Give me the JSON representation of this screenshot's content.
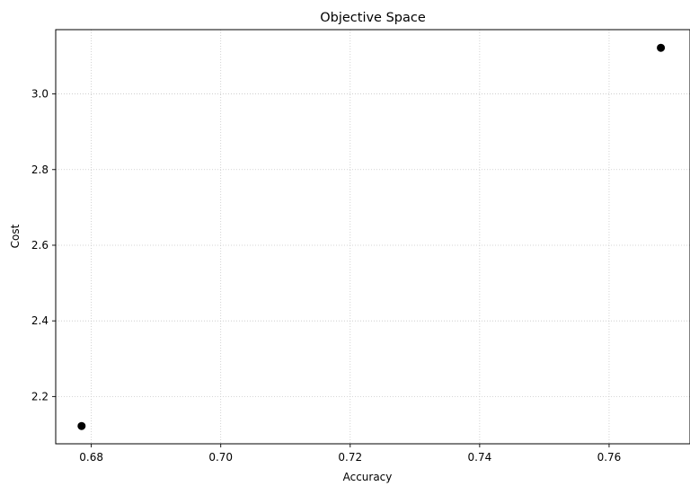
{
  "chart_data": {
    "type": "scatter",
    "title": "Objective Space",
    "xlabel": "Accuracy",
    "ylabel": "Cost",
    "xlim": [
      0.6745,
      0.7725
    ],
    "ylim": [
      2.075,
      3.17
    ],
    "xticks": [
      0.68,
      0.7,
      0.72,
      0.74,
      0.76
    ],
    "xtick_labels": [
      "0.68",
      "0.70",
      "0.72",
      "0.74",
      "0.76"
    ],
    "yticks": [
      2.2,
      2.4,
      2.6,
      2.8,
      3.0
    ],
    "ytick_labels": [
      "2.2",
      "2.4",
      "2.6",
      "2.8",
      "3.0"
    ],
    "grid": true,
    "series": [
      {
        "x": [
          0.6785,
          0.768
        ],
        "y": [
          2.122,
          3.122
        ],
        "color": "#000000"
      }
    ]
  }
}
